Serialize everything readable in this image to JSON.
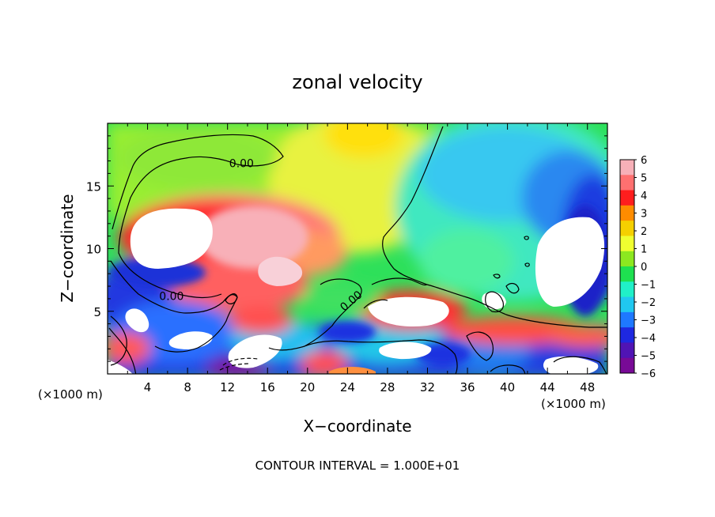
{
  "chart_data": {
    "type": "heatmap",
    "title": "zonal velocity",
    "xlabel": "X−coordinate",
    "ylabel": "Z−coordinate",
    "x_unit_left": "(×1000 m)",
    "x_unit_right": "(×1000 m)",
    "xlim": [
      0,
      50
    ],
    "ylim": [
      0,
      20
    ],
    "x_ticks": [
      4,
      8,
      12,
      16,
      20,
      24,
      28,
      32,
      36,
      40,
      44,
      48
    ],
    "y_ticks": [
      5,
      10,
      15
    ],
    "colorbar": {
      "levels": [
        6,
        5,
        4,
        3,
        2,
        1,
        0,
        -1,
        -2,
        -3,
        -4,
        -5,
        -6
      ],
      "labels": [
        "6",
        "5",
        "4",
        "3",
        "2",
        "1",
        "0",
        "−1",
        "−2",
        "−3",
        "−4",
        "−5",
        "−6"
      ],
      "colors": [
        "#f7b0b8",
        "#ff7070",
        "#ff1e1e",
        "#ff8c00",
        "#f5d000",
        "#f0ff30",
        "#8ce820",
        "#1ee050",
        "#20f0c8",
        "#20c8f0",
        "#1e78ff",
        "#1e28e0",
        "#5014b4",
        "#780a96"
      ]
    },
    "contour_labels": [
      {
        "text": "0.00",
        "x": 13.4,
        "y": 16.5
      },
      {
        "text": "0.00",
        "x": 6.4,
        "y": 5.9
      },
      {
        "text": "0.00",
        "x": 24.6,
        "y": 5.6
      }
    ],
    "footer": "CONTOUR INTERVAL = 1.000E+01"
  }
}
